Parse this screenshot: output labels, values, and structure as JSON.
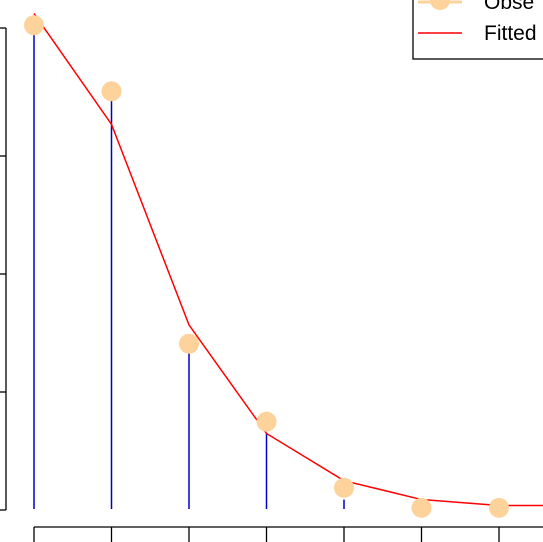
{
  "chart_data": {
    "type": "scatter",
    "title": "",
    "xlabel": "",
    "ylabel": "",
    "x": [
      1,
      2,
      3,
      4,
      5,
      6,
      7
    ],
    "series": [
      {
        "name": "Obse",
        "kind": "points",
        "values": [
          0.205,
          0.177,
          0.07,
          0.037,
          0.009,
          0.0005,
          0.0005
        ]
      },
      {
        "name": "Fitted",
        "kind": "line",
        "values": [
          0.21,
          0.163,
          0.078,
          0.032,
          0.012,
          0.004,
          0.0015
        ]
      }
    ],
    "stems": [
      0.205,
      0.177,
      0.07,
      0.032,
      0.004,
      0,
      0
    ],
    "legend_position": "top-right",
    "colors": {
      "observed": "#FDD39B",
      "fitted": "#FF0000",
      "stems": "#0000CC",
      "axis": "#000000"
    }
  }
}
